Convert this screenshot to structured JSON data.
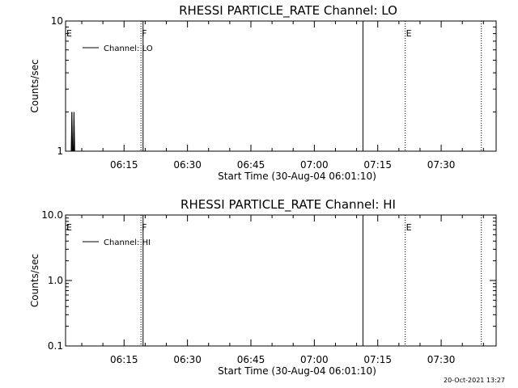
{
  "footer": {
    "timestamp": "20-Oct-2021 13:27"
  },
  "chart_data": [
    {
      "type": "line",
      "title": "RHESSI PARTICLE_RATE Channel: LO",
      "xlabel": "Start Time (30-Aug-04 06:01:10)",
      "ylabel": "Counts/sec",
      "scale": "log",
      "xlim": [
        "06:01:10",
        "07:43:00"
      ],
      "ylim": [
        1,
        10
      ],
      "x_ticks": [
        "06:15",
        "06:30",
        "06:45",
        "07:00",
        "07:15",
        "07:30"
      ],
      "y_ticks": [
        {
          "value": 1,
          "label": "1"
        },
        {
          "value": 10,
          "label": "10"
        }
      ],
      "legend": {
        "position": "top-left",
        "entries": [
          "Channel: LO"
        ]
      },
      "series": [
        {
          "name": "Channel: LO",
          "x": [
            "06:02:30",
            "06:02:40",
            "06:02:50",
            "06:03:00",
            "06:03:10",
            "06:03:20",
            "06:03:30"
          ],
          "y": [
            1,
            2,
            1,
            1,
            2,
            1,
            1
          ]
        }
      ],
      "events": [
        {
          "time": "06:01:10",
          "label": "E",
          "style": "dotted"
        },
        {
          "time": "06:19:00",
          "label": "F",
          "style": "dotted"
        },
        {
          "time": "06:19:30",
          "label": "",
          "style": "solid"
        },
        {
          "time": "07:11:30",
          "label": "",
          "style": "solid"
        },
        {
          "time": "07:21:30",
          "label": "E",
          "style": "dotted"
        },
        {
          "time": "07:39:30",
          "label": "",
          "style": "dotted"
        }
      ]
    },
    {
      "type": "line",
      "title": "RHESSI PARTICLE_RATE Channel: HI",
      "xlabel": "Start Time (30-Aug-04 06:01:10)",
      "ylabel": "Counts/sec",
      "scale": "log",
      "xlim": [
        "06:01:10",
        "07:43:00"
      ],
      "ylim": [
        0.1,
        10
      ],
      "x_ticks": [
        "06:15",
        "06:30",
        "06:45",
        "07:00",
        "07:15",
        "07:30"
      ],
      "y_ticks": [
        {
          "value": 0.1,
          "label": "0.1"
        },
        {
          "value": 1,
          "label": "1.0"
        },
        {
          "value": 10,
          "label": "10.0"
        }
      ],
      "legend": {
        "position": "top-left",
        "entries": [
          "Channel: HI"
        ]
      },
      "series": [
        {
          "name": "Channel: HI",
          "x": [],
          "y": []
        }
      ],
      "events": [
        {
          "time": "06:01:10",
          "label": "E",
          "style": "dotted"
        },
        {
          "time": "06:19:00",
          "label": "F",
          "style": "dotted"
        },
        {
          "time": "06:19:30",
          "label": "",
          "style": "solid"
        },
        {
          "time": "07:11:30",
          "label": "",
          "style": "solid"
        },
        {
          "time": "07:21:30",
          "label": "E",
          "style": "dotted"
        },
        {
          "time": "07:39:30",
          "label": "",
          "style": "dotted"
        }
      ]
    }
  ]
}
